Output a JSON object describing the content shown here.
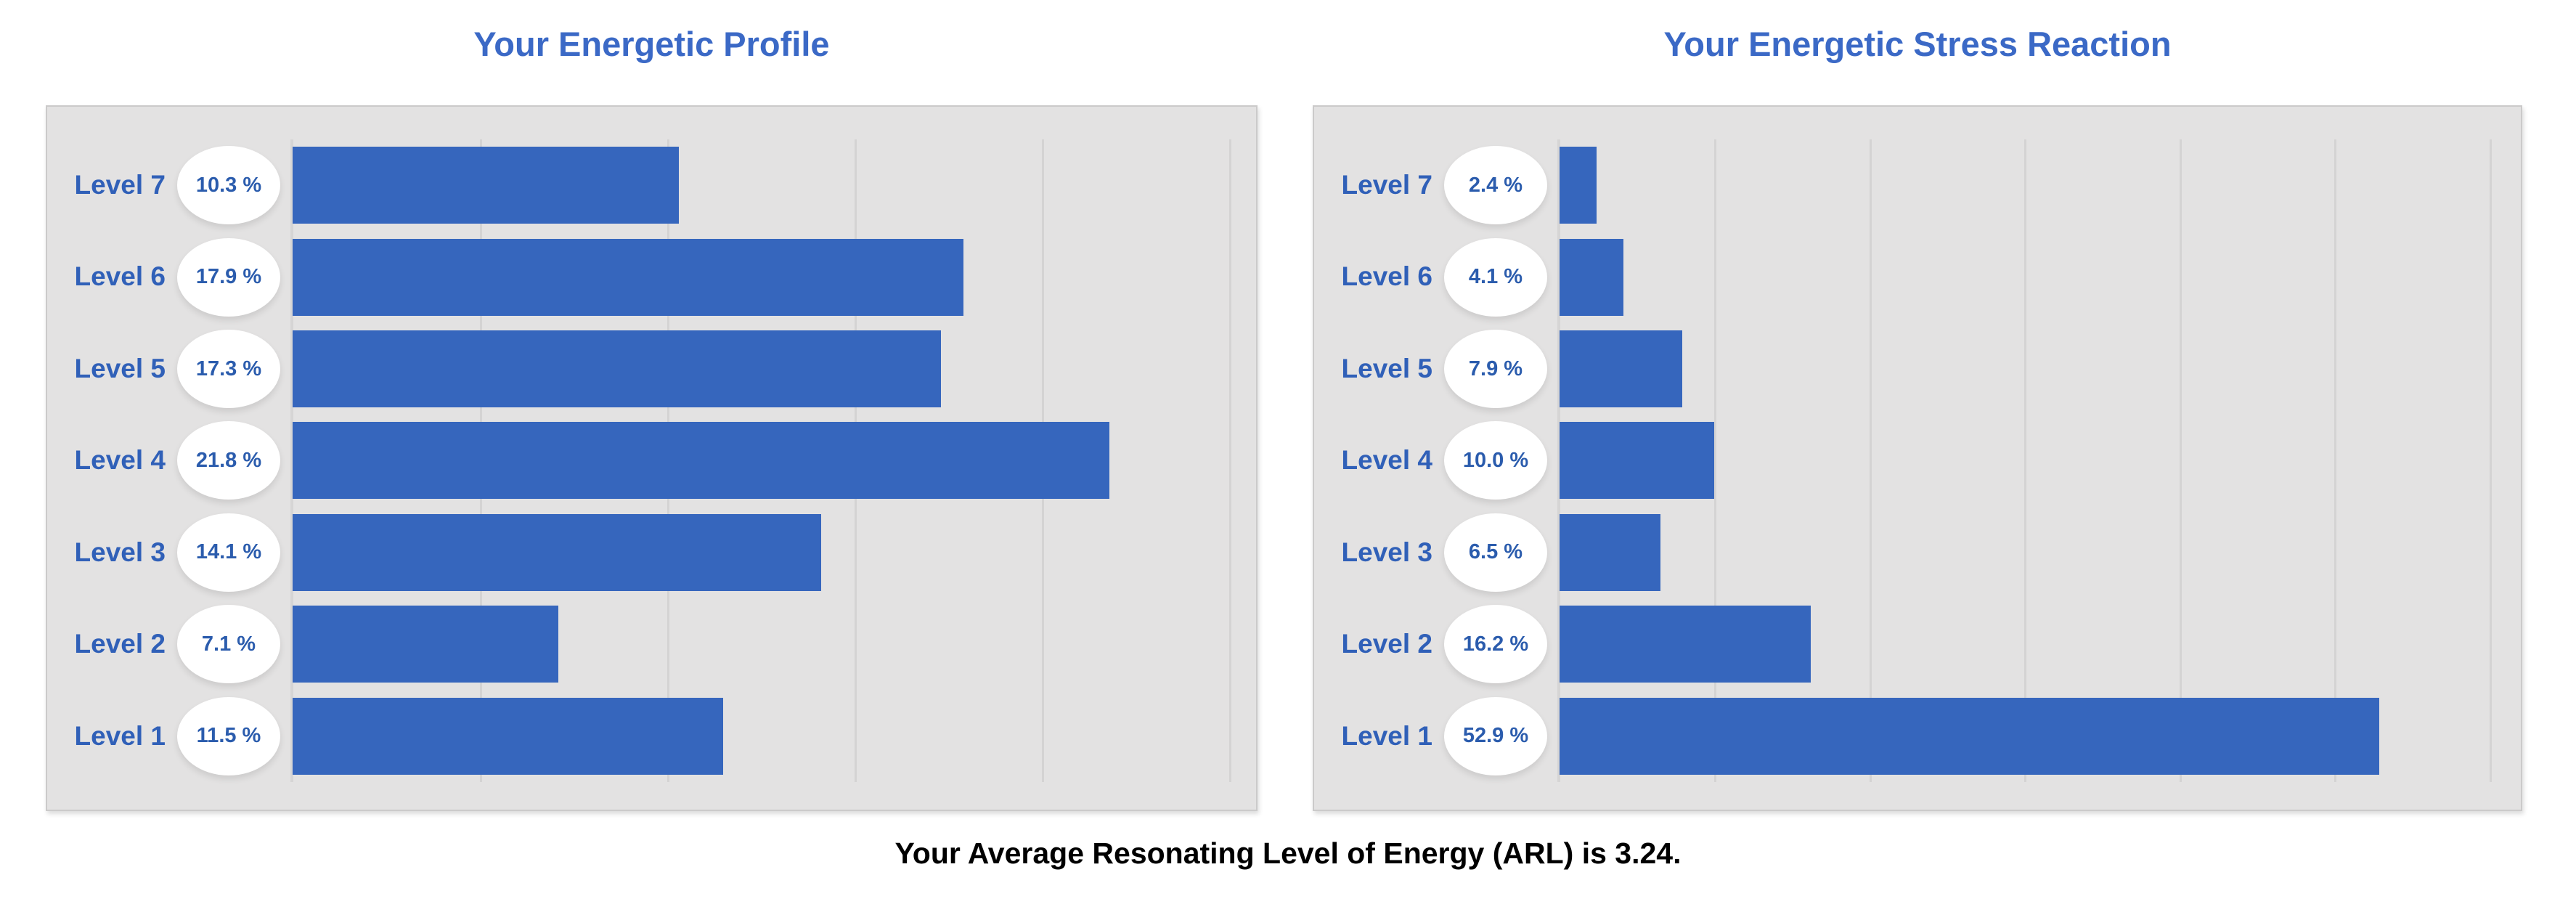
{
  "page": {
    "caption": "Your Average Resonating Level of Energy (ARL) is 3.24."
  },
  "colors": {
    "bar": "#3666BD",
    "title": "#3B69C6",
    "level_label": "#3060B8",
    "percent_text": "#2B5CAD",
    "panel_background": "#e3e2e2",
    "gridline": "#d4d3d3",
    "badge_background": "#ffffff",
    "page_background": "#ffffff",
    "caption_text": "#000000"
  },
  "chart_data": [
    {
      "type": "bar",
      "orientation": "horizontal",
      "title": "Your Energetic Profile",
      "categories": [
        "Level 7",
        "Level 6",
        "Level 5",
        "Level 4",
        "Level 3",
        "Level 2",
        "Level 1"
      ],
      "values": [
        10.3,
        17.9,
        17.3,
        21.8,
        14.1,
        7.1,
        11.5
      ],
      "value_labels": [
        "10.3 %",
        "17.9 %",
        "17.3 %",
        "21.8 %",
        "14.1 %",
        "7.1 %",
        "11.5 %"
      ],
      "xlabel": "",
      "ylabel": "",
      "xlim": [
        0,
        25.5
      ],
      "gridlines": [
        5,
        10,
        15,
        20,
        25
      ],
      "grid": true,
      "legend": false
    },
    {
      "type": "bar",
      "orientation": "horizontal",
      "title": "Your Energetic Stress Reaction",
      "categories": [
        "Level 7",
        "Level 6",
        "Level 5",
        "Level 4",
        "Level 3",
        "Level 2",
        "Level 1"
      ],
      "values": [
        2.4,
        4.1,
        7.9,
        10.0,
        6.5,
        16.2,
        52.9
      ],
      "value_labels": [
        "2.4 %",
        "4.1 %",
        "7.9 %",
        "10.0 %",
        "6.5 %",
        "16.2 %",
        "52.9 %"
      ],
      "xlabel": "",
      "ylabel": "",
      "xlim": [
        0,
        61.5
      ],
      "gridlines": [
        10,
        20,
        30,
        40,
        50,
        60
      ],
      "grid": true,
      "legend": false
    }
  ]
}
